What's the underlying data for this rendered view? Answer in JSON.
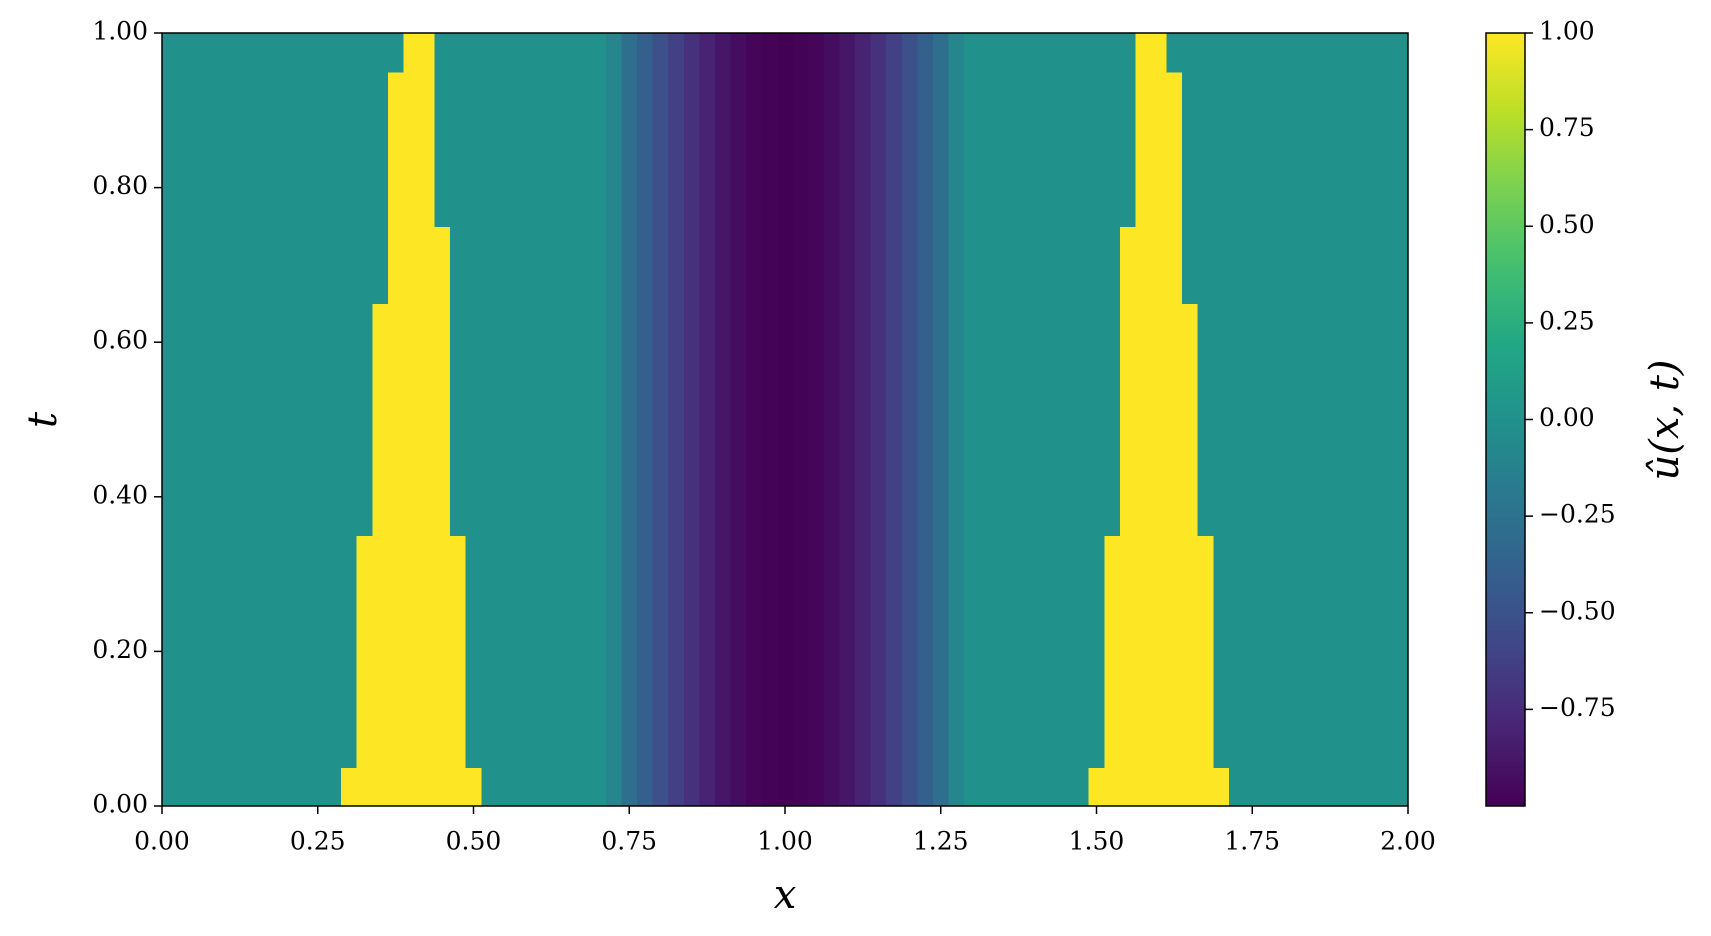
{
  "chart_data": {
    "type": "heatmap",
    "colormap": "viridis",
    "xlabel": "x",
    "ylabel": "t",
    "colorbar_label": "û(x, t)",
    "xlim": [
      0,
      2
    ],
    "ylim": [
      0,
      1
    ],
    "clim": [
      -1,
      1
    ],
    "xticks": [
      {
        "value": 0,
        "label": "0.00"
      },
      {
        "value": 0.25,
        "label": "0.25"
      },
      {
        "value": 0.5,
        "label": "0.50"
      },
      {
        "value": 0.75,
        "label": "0.75"
      },
      {
        "value": 1,
        "label": "1.00"
      },
      {
        "value": 1.25,
        "label": "1.25"
      },
      {
        "value": 1.5,
        "label": "1.50"
      },
      {
        "value": 1.75,
        "label": "1.75"
      },
      {
        "value": 2,
        "label": "2.00"
      }
    ],
    "yticks": [
      {
        "value": 0,
        "label": "0.00"
      },
      {
        "value": 0.2,
        "label": "0.20"
      },
      {
        "value": 0.4,
        "label": "0.40"
      },
      {
        "value": 0.6,
        "label": "0.60"
      },
      {
        "value": 0.8,
        "label": "0.80"
      },
      {
        "value": 1,
        "label": "1.00"
      }
    ],
    "cticks": [
      {
        "value": -0.75,
        "label": "−0.75"
      },
      {
        "value": -0.5,
        "label": "−0.50"
      },
      {
        "value": -0.25,
        "label": "−0.25"
      },
      {
        "value": 0,
        "label": "0.00"
      },
      {
        "value": 0.25,
        "label": "0.25"
      },
      {
        "value": 0.5,
        "label": "0.50"
      },
      {
        "value": 0.75,
        "label": "0.75"
      },
      {
        "value": 1,
        "label": "1.00"
      }
    ],
    "x": [
      0,
      0.025,
      0.05,
      0.075,
      0.1,
      0.125,
      0.15,
      0.175,
      0.2,
      0.225,
      0.25,
      0.275,
      0.3,
      0.325,
      0.35,
      0.375,
      0.4,
      0.425,
      0.45,
      0.475,
      0.5,
      0.525,
      0.55,
      0.575,
      0.6,
      0.625,
      0.65,
      0.675,
      0.7,
      0.725,
      0.75,
      0.775,
      0.8,
      0.825,
      0.85,
      0.875,
      0.9,
      0.925,
      0.95,
      0.975,
      1,
      1.025,
      1.05,
      1.075,
      1.1,
      1.125,
      1.15,
      1.175,
      1.2,
      1.225,
      1.25,
      1.275,
      1.3,
      1.325,
      1.35,
      1.375,
      1.4,
      1.425,
      1.45,
      1.475,
      1.5,
      1.525,
      1.55,
      1.575,
      1.6,
      1.625,
      1.65,
      1.675,
      1.7,
      1.725,
      1.75,
      1.775,
      1.8,
      1.825,
      1.85,
      1.875,
      1.9,
      1.925,
      1.95,
      1.975,
      2
    ],
    "t": [
      0,
      0.1,
      0.2,
      0.3,
      0.4,
      0.5,
      0.6,
      0.7,
      0.8,
      0.9,
      1
    ],
    "z": [
      [
        0,
        0,
        0,
        0,
        0,
        0,
        0,
        0,
        0,
        0,
        0,
        0,
        1,
        1,
        1,
        1,
        1,
        1,
        1,
        1,
        1,
        0,
        0,
        0,
        0,
        0,
        0,
        0,
        0,
        -0.08,
        -0.27,
        -0.39,
        -0.51,
        -0.62,
        -0.72,
        -0.81,
        -0.88,
        -0.93,
        -0.97,
        -0.99,
        -1,
        -0.99,
        -0.97,
        -0.93,
        -0.88,
        -0.81,
        -0.72,
        -0.62,
        -0.51,
        -0.39,
        -0.27,
        -0.08,
        0,
        0,
        0,
        0,
        0,
        0,
        0,
        0,
        1,
        1,
        1,
        1,
        1,
        1,
        1,
        1,
        1,
        0,
        0,
        0,
        0,
        0,
        0,
        0,
        0,
        0,
        0,
        0,
        0
      ],
      [
        0,
        0,
        0,
        0,
        0,
        0,
        0,
        0,
        0,
        0,
        0,
        0,
        0,
        1,
        1,
        1,
        1,
        1,
        1,
        1,
        0,
        0,
        0,
        0,
        0,
        0,
        0,
        0,
        0,
        -0.08,
        -0.27,
        -0.39,
        -0.51,
        -0.62,
        -0.72,
        -0.81,
        -0.88,
        -0.93,
        -0.97,
        -0.99,
        -1,
        -0.99,
        -0.97,
        -0.93,
        -0.88,
        -0.81,
        -0.72,
        -0.62,
        -0.51,
        -0.39,
        -0.27,
        -0.08,
        0,
        0,
        0,
        0,
        0,
        0,
        0,
        0,
        0,
        1,
        1,
        1,
        1,
        1,
        1,
        1,
        0,
        0,
        0,
        0,
        0,
        0,
        0,
        0,
        0,
        0,
        0,
        0,
        0
      ],
      [
        0,
        0,
        0,
        0,
        0,
        0,
        0,
        0,
        0,
        0,
        0,
        0,
        0,
        1,
        1,
        1,
        1,
        1,
        1,
        1,
        0,
        0,
        0,
        0,
        0,
        0,
        0,
        0,
        0,
        -0.08,
        -0.27,
        -0.39,
        -0.51,
        -0.62,
        -0.72,
        -0.81,
        -0.88,
        -0.93,
        -0.97,
        -0.99,
        -1,
        -0.99,
        -0.97,
        -0.93,
        -0.88,
        -0.81,
        -0.72,
        -0.62,
        -0.51,
        -0.39,
        -0.27,
        -0.08,
        0,
        0,
        0,
        0,
        0,
        0,
        0,
        0,
        0,
        1,
        1,
        1,
        1,
        1,
        1,
        1,
        0,
        0,
        0,
        0,
        0,
        0,
        0,
        0,
        0,
        0,
        0,
        0,
        0
      ],
      [
        0,
        0,
        0,
        0,
        0,
        0,
        0,
        0,
        0,
        0,
        0,
        0,
        0,
        1,
        1,
        1,
        1,
        1,
        1,
        1,
        0,
        0,
        0,
        0,
        0,
        0,
        0,
        0,
        0,
        -0.08,
        -0.27,
        -0.39,
        -0.51,
        -0.62,
        -0.72,
        -0.81,
        -0.88,
        -0.93,
        -0.97,
        -0.99,
        -1,
        -0.99,
        -0.97,
        -0.93,
        -0.88,
        -0.81,
        -0.72,
        -0.62,
        -0.51,
        -0.39,
        -0.27,
        -0.08,
        0,
        0,
        0,
        0,
        0,
        0,
        0,
        0,
        0,
        1,
        1,
        1,
        1,
        1,
        1,
        1,
        0,
        0,
        0,
        0,
        0,
        0,
        0,
        0,
        0,
        0,
        0,
        0,
        0
      ],
      [
        0,
        0,
        0,
        0,
        0,
        0,
        0,
        0,
        0,
        0,
        0,
        0,
        0,
        0,
        1,
        1,
        1,
        1,
        1,
        0,
        0,
        0,
        0,
        0,
        0,
        0,
        0,
        0,
        0,
        -0.08,
        -0.27,
        -0.39,
        -0.51,
        -0.62,
        -0.72,
        -0.81,
        -0.88,
        -0.93,
        -0.97,
        -0.99,
        -1,
        -0.99,
        -0.97,
        -0.93,
        -0.88,
        -0.81,
        -0.72,
        -0.62,
        -0.51,
        -0.39,
        -0.27,
        -0.08,
        0,
        0,
        0,
        0,
        0,
        0,
        0,
        0,
        0,
        0,
        1,
        1,
        1,
        1,
        1,
        0,
        0,
        0,
        0,
        0,
        0,
        0,
        0,
        0,
        0,
        0,
        0,
        0,
        0
      ],
      [
        0,
        0,
        0,
        0,
        0,
        0,
        0,
        0,
        0,
        0,
        0,
        0,
        0,
        0,
        1,
        1,
        1,
        1,
        1,
        0,
        0,
        0,
        0,
        0,
        0,
        0,
        0,
        0,
        0,
        -0.08,
        -0.27,
        -0.39,
        -0.51,
        -0.62,
        -0.72,
        -0.81,
        -0.88,
        -0.93,
        -0.97,
        -0.99,
        -1,
        -0.99,
        -0.97,
        -0.93,
        -0.88,
        -0.81,
        -0.72,
        -0.62,
        -0.51,
        -0.39,
        -0.27,
        -0.08,
        0,
        0,
        0,
        0,
        0,
        0,
        0,
        0,
        0,
        0,
        1,
        1,
        1,
        1,
        1,
        0,
        0,
        0,
        0,
        0,
        0,
        0,
        0,
        0,
        0,
        0,
        0,
        0,
        0
      ],
      [
        0,
        0,
        0,
        0,
        0,
        0,
        0,
        0,
        0,
        0,
        0,
        0,
        0,
        0,
        1,
        1,
        1,
        1,
        1,
        0,
        0,
        0,
        0,
        0,
        0,
        0,
        0,
        0,
        0,
        -0.08,
        -0.27,
        -0.39,
        -0.51,
        -0.62,
        -0.72,
        -0.81,
        -0.88,
        -0.93,
        -0.97,
        -0.99,
        -1,
        -0.99,
        -0.97,
        -0.93,
        -0.88,
        -0.81,
        -0.72,
        -0.62,
        -0.51,
        -0.39,
        -0.27,
        -0.08,
        0,
        0,
        0,
        0,
        0,
        0,
        0,
        0,
        0,
        0,
        1,
        1,
        1,
        1,
        1,
        0,
        0,
        0,
        0,
        0,
        0,
        0,
        0,
        0,
        0,
        0,
        0,
        0,
        0
      ],
      [
        0,
        0,
        0,
        0,
        0,
        0,
        0,
        0,
        0,
        0,
        0,
        0,
        0,
        0,
        0,
        1,
        1,
        1,
        1,
        0,
        0,
        0,
        0,
        0,
        0,
        0,
        0,
        0,
        0,
        -0.08,
        -0.27,
        -0.39,
        -0.51,
        -0.62,
        -0.72,
        -0.81,
        -0.88,
        -0.93,
        -0.97,
        -0.99,
        -1,
        -0.99,
        -0.97,
        -0.93,
        -0.88,
        -0.81,
        -0.72,
        -0.62,
        -0.51,
        -0.39,
        -0.27,
        -0.08,
        0,
        0,
        0,
        0,
        0,
        0,
        0,
        0,
        0,
        0,
        1,
        1,
        1,
        1,
        0,
        0,
        0,
        0,
        0,
        0,
        0,
        0,
        0,
        0,
        0,
        0,
        0,
        0,
        0
      ],
      [
        0,
        0,
        0,
        0,
        0,
        0,
        0,
        0,
        0,
        0,
        0,
        0,
        0,
        0,
        0,
        1,
        1,
        1,
        0,
        0,
        0,
        0,
        0,
        0,
        0,
        0,
        0,
        0,
        0,
        -0.08,
        -0.27,
        -0.39,
        -0.51,
        -0.62,
        -0.72,
        -0.81,
        -0.88,
        -0.93,
        -0.97,
        -0.99,
        -1,
        -0.99,
        -0.97,
        -0.93,
        -0.88,
        -0.81,
        -0.72,
        -0.62,
        -0.51,
        -0.39,
        -0.27,
        -0.08,
        0,
        0,
        0,
        0,
        0,
        0,
        0,
        0,
        0,
        0,
        0,
        1,
        1,
        1,
        0,
        0,
        0,
        0,
        0,
        0,
        0,
        0,
        0,
        0,
        0,
        0,
        0,
        0,
        0
      ],
      [
        0,
        0,
        0,
        0,
        0,
        0,
        0,
        0,
        0,
        0,
        0,
        0,
        0,
        0,
        0,
        1,
        1,
        1,
        0,
        0,
        0,
        0,
        0,
        0,
        0,
        0,
        0,
        0,
        0,
        -0.08,
        -0.27,
        -0.39,
        -0.51,
        -0.62,
        -0.72,
        -0.81,
        -0.88,
        -0.93,
        -0.97,
        -0.99,
        -1,
        -0.99,
        -0.97,
        -0.93,
        -0.88,
        -0.81,
        -0.72,
        -0.62,
        -0.51,
        -0.39,
        -0.27,
        -0.08,
        0,
        0,
        0,
        0,
        0,
        0,
        0,
        0,
        0,
        0,
        0,
        1,
        1,
        1,
        0,
        0,
        0,
        0,
        0,
        0,
        0,
        0,
        0,
        0,
        0,
        0,
        0,
        0,
        0
      ],
      [
        0,
        0,
        0,
        0,
        0,
        0,
        0,
        0,
        0,
        0,
        0,
        0,
        0,
        0,
        0,
        0,
        1,
        1,
        0,
        0,
        0,
        0,
        0,
        0,
        0,
        0,
        0,
        0,
        0,
        -0.08,
        -0.27,
        -0.39,
        -0.51,
        -0.62,
        -0.72,
        -0.81,
        -0.88,
        -0.93,
        -0.97,
        -0.99,
        -1,
        -0.99,
        -0.97,
        -0.93,
        -0.88,
        -0.81,
        -0.72,
        -0.62,
        -0.51,
        -0.39,
        -0.27,
        -0.08,
        0,
        0,
        0,
        0,
        0,
        0,
        0,
        0,
        0,
        0,
        0,
        1,
        1,
        0,
        0,
        0,
        0,
        0,
        0,
        0,
        0,
        0,
        0,
        0,
        0,
        0,
        0,
        0,
        0
      ]
    ]
  }
}
